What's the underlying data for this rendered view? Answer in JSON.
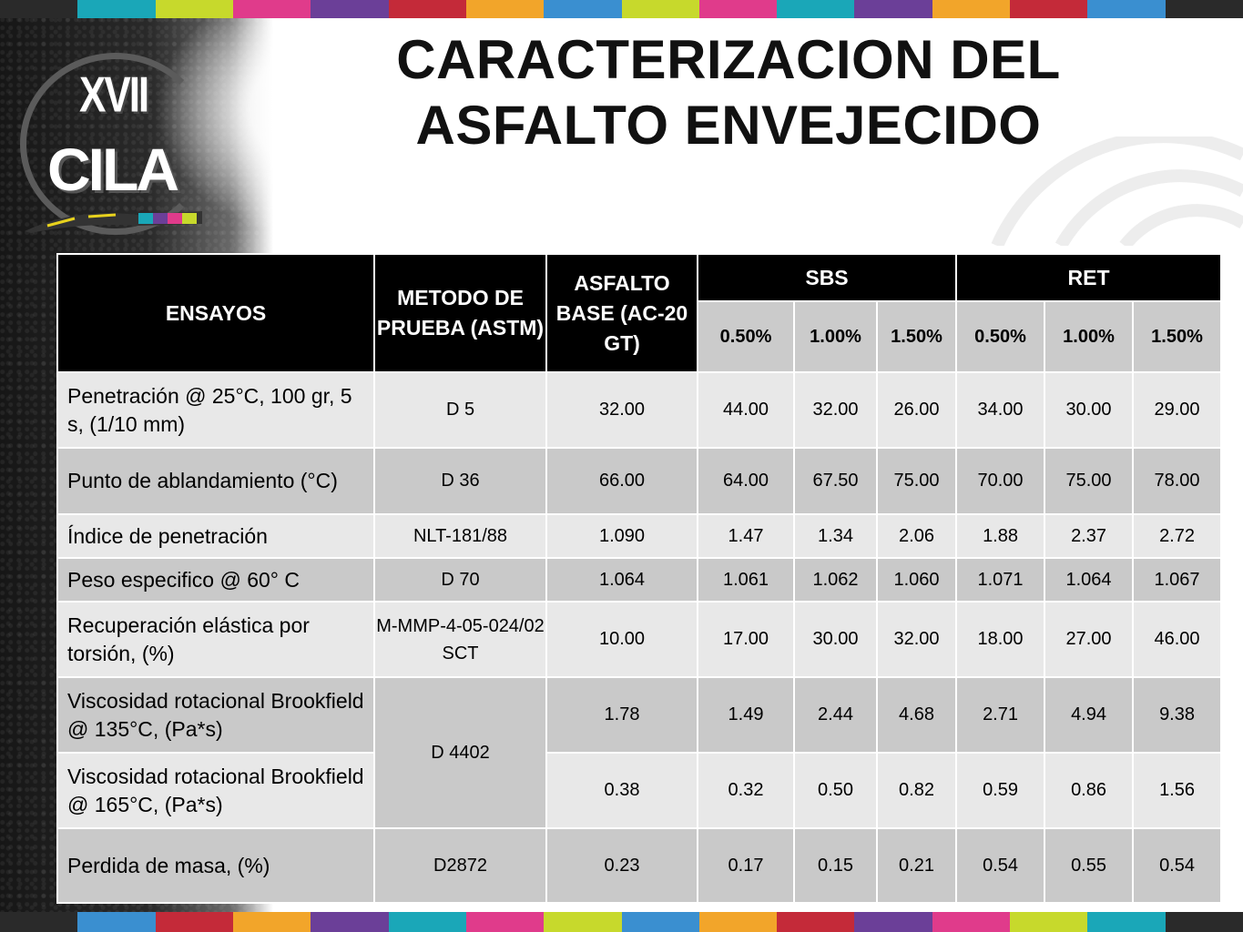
{
  "title_line1": "CARACTERIZACION DEL",
  "title_line2": "ASFALTO ENVEJECIDO",
  "logo": {
    "numeral": "XVII",
    "name": "CILA"
  },
  "stripe_colors": [
    "#2a2a2a",
    "#1aa7b8",
    "#c7d92c",
    "#e03b8b",
    "#6b3f98",
    "#c42a39",
    "#f2a52a",
    "#3a8fd0",
    "#c7d92c",
    "#e03b8b",
    "#1aa7b8",
    "#6b3f98",
    "#f2a52a",
    "#c42a39",
    "#3a8fd0",
    "#2a2a2a"
  ],
  "table": {
    "headers": {
      "ensayos": "ENSAYOS",
      "metodo": "METODO DE PRUEBA (ASTM)",
      "asfalto": "ASFALTO BASE (AC-20 GT)",
      "sbs": "SBS",
      "ret": "RET",
      "sub": [
        "0.50%",
        "1.00%",
        "1.50%",
        "0.50%",
        "1.00%",
        "1.50%"
      ]
    },
    "rows": [
      {
        "ensayo": "Penetración @ 25°C, 100 gr, 5 s, (1/10 mm)",
        "metodo": "D 5",
        "base": "32.00",
        "values": [
          "44.00",
          "32.00",
          "26.00",
          "34.00",
          "30.00",
          "29.00"
        ]
      },
      {
        "ensayo": "Punto de ablandamiento (°C)",
        "metodo": "D 36",
        "base": "66.00",
        "values": [
          "64.00",
          "67.50",
          "75.00",
          "70.00",
          "75.00",
          "78.00"
        ]
      },
      {
        "ensayo": "Índice de penetración",
        "metodo": "NLT-181/88",
        "base": "1.090",
        "values": [
          "1.47",
          "1.34",
          "2.06",
          "1.88",
          "2.37",
          "2.72"
        ]
      },
      {
        "ensayo": "Peso especifico @ 60° C",
        "metodo": "D 70",
        "base": "1.064",
        "values": [
          "1.061",
          "1.062",
          "1.060",
          "1.071",
          "1.064",
          "1.067"
        ]
      },
      {
        "ensayo": "Recuperación elástica por torsión, (%)",
        "metodo": "M-MMP-4-05-024/02 SCT",
        "base": "10.00",
        "values": [
          "17.00",
          "30.00",
          "32.00",
          "18.00",
          "27.00",
          "46.00"
        ]
      },
      {
        "ensayo": "Viscosidad rotacional Brookfield @ 135°C, (Pa*s)",
        "metodo": "D 4402",
        "base": "1.78",
        "values": [
          "1.49",
          "2.44",
          "4.68",
          "2.71",
          "4.94",
          "9.38"
        ]
      },
      {
        "ensayo": "Viscosidad rotacional Brookfield @ 165°C, (Pa*s)",
        "base": "0.38",
        "values": [
          "0.32",
          "0.50",
          "0.82",
          "0.59",
          "0.86",
          "1.56"
        ]
      },
      {
        "ensayo": "Perdida de masa, (%)",
        "metodo": "D2872",
        "base": "0.23",
        "values": [
          "0.17",
          "0.15",
          "0.21",
          "0.54",
          "0.55",
          "0.54"
        ]
      }
    ]
  }
}
